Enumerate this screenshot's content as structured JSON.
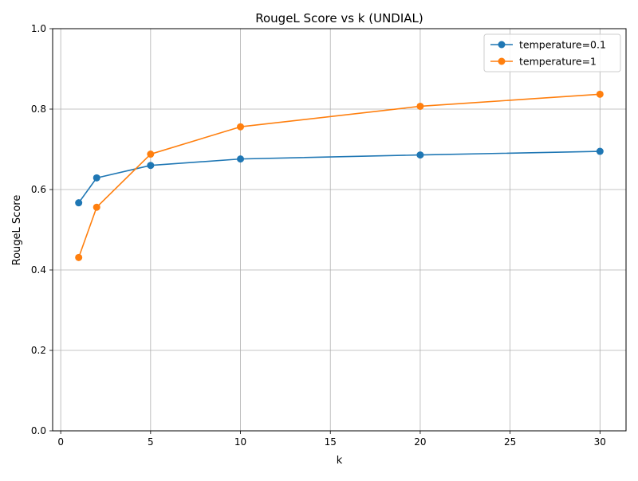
{
  "chart_data": {
    "type": "line",
    "title": "RougeL Score vs k (UNDIAL)",
    "xlabel": "k",
    "ylabel": "RougeL Score",
    "xlim": [
      -0.45,
      31.45
    ],
    "ylim": [
      0,
      1.0
    ],
    "xticks": [
      0,
      5,
      10,
      15,
      20,
      25,
      30
    ],
    "yticks": [
      0.0,
      0.2,
      0.4,
      0.6,
      0.8,
      1.0
    ],
    "xtick_labels": [
      "0",
      "5",
      "10",
      "15",
      "20",
      "25",
      "30"
    ],
    "ytick_labels": [
      "0.0",
      "0.2",
      "0.4",
      "0.6",
      "0.8",
      "1.0"
    ],
    "grid": true,
    "legend_position": "upper right",
    "x": [
      1,
      2,
      5,
      10,
      20,
      30
    ],
    "series": [
      {
        "name": "temperature=0.1",
        "color": "#1f77b4",
        "marker": "circle",
        "values": [
          0.567,
          0.629,
          0.66,
          0.676,
          0.686,
          0.695
        ]
      },
      {
        "name": "temperature=1",
        "color": "#ff7f0e",
        "marker": "circle",
        "values": [
          0.431,
          0.556,
          0.688,
          0.756,
          0.807,
          0.837
        ]
      }
    ]
  }
}
